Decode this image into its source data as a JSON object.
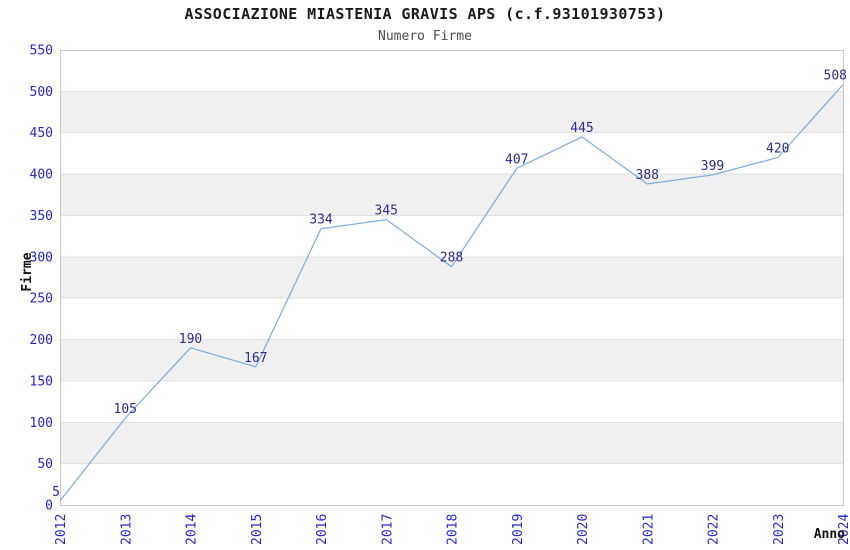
{
  "chart_data": {
    "type": "line",
    "title": "ASSOCIAZIONE MIASTENIA GRAVIS APS (c.f.93101930753)",
    "subtitle": "Numero Firme",
    "xlabel": "Anno",
    "ylabel": "Firme",
    "x": [
      "2012",
      "2013",
      "2014",
      "2015",
      "2016",
      "2017",
      "2018",
      "2019",
      "2020",
      "2021",
      "2022",
      "2023",
      "2024"
    ],
    "values": [
      5,
      105,
      190,
      167,
      334,
      345,
      288,
      407,
      445,
      388,
      399,
      420,
      508
    ],
    "ylim": [
      0,
      550
    ],
    "ytick_step": 50,
    "grid": true,
    "background_bands": true,
    "legend": "none",
    "colors": {
      "line": "#7fafdf",
      "tick_labels": "#2727cc",
      "data_labels": "#2d2d8f",
      "band": "#f0f0f0",
      "gridline": "#e0e0e0",
      "plot_border": "#c9c9c9",
      "title": "#1a1a1a",
      "subtitle": "#4d4d4d",
      "axis_titles": "#111111"
    }
  }
}
